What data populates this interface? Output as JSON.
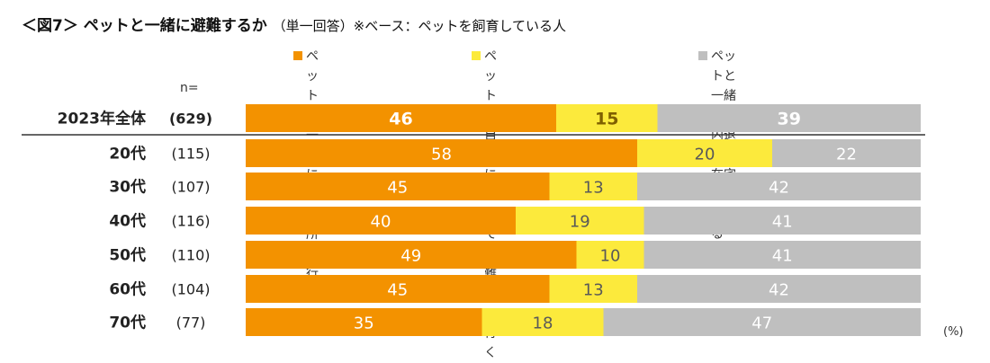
{
  "title": {
    "main": "＜図7＞ ペットと一緒に避難するか",
    "sub": "（単一回答）※ベース：ペットを飼育している人"
  },
  "n_label": "n=",
  "unit": "(%)",
  "chart_data": {
    "type": "bar",
    "stacked": true,
    "orientation": "horizontal",
    "categories": [
      "2023年全体",
      "20代",
      "30代",
      "40代",
      "50代",
      "60代",
      "70代"
    ],
    "n": [
      "(629)",
      "(115)",
      "(107)",
      "(116)",
      "(110)",
      "(104)",
      "(77)"
    ],
    "series": [
      {
        "name": "ペットと一緒に\n避難所に行く",
        "color": "#F39200",
        "values": [
          46,
          58,
          45,
          40,
          49,
          45,
          35
        ]
      },
      {
        "name": "ペットは自宅に残して\n避難所へ行く",
        "color": "#FCEA3C",
        "values": [
          15,
          20,
          13,
          19,
          10,
          13,
          18
        ]
      },
      {
        "name": "ペットと一緒に屋内退避・\n在宅避難をする",
        "color": "#BFBFBF",
        "values": [
          39,
          22,
          42,
          41,
          41,
          42,
          47
        ]
      }
    ],
    "xlim": [
      0,
      100
    ],
    "label_colors": {
      "orange": "#ffffff",
      "yellow": "#595959",
      "gray": "#ffffff",
      "total_yellow": "#7f6000"
    }
  }
}
